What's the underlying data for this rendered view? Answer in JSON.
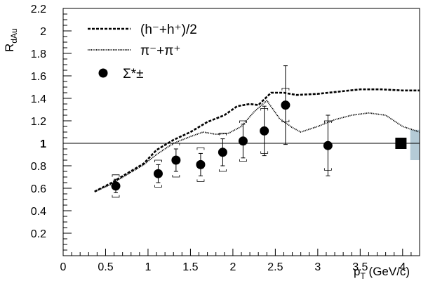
{
  "chart_data": {
    "type": "scatter",
    "xlabel_main": "p",
    "xlabel_sub": "T",
    "xlabel_unit": " (GeV/c)",
    "ylabel_main": "R",
    "ylabel_sub": "dAu",
    "xlim": [
      0,
      4.2
    ],
    "ylim": [
      0,
      2.2
    ],
    "x_ticks": [
      0,
      0.5,
      1,
      1.5,
      2,
      2.5,
      3,
      3.5,
      4
    ],
    "x_tick_labels": [
      "0",
      "0.5",
      "1",
      "1.5",
      "2",
      "2.5",
      "3",
      "3.5",
      "4"
    ],
    "y_ticks": [
      0.2,
      0.4,
      0.6,
      0.8,
      1.0,
      1.2,
      1.4,
      1.6,
      1.8,
      2.0,
      2.2
    ],
    "y_tick_labels": [
      "0.2",
      "0.4",
      "0.6",
      "0.8",
      "1",
      "1.2",
      "1.4",
      "1.6",
      "1.8",
      "2",
      "2.2"
    ],
    "grid": false,
    "reference_line_y": 1.0,
    "legend_position": "top-left",
    "legend": [
      {
        "label": "(h⁻+h⁺)/2",
        "style": "dashed"
      },
      {
        "label": "π⁻+π⁺",
        "style": "dotted"
      },
      {
        "label": "Σ*±",
        "style": "marker"
      }
    ],
    "series": [
      {
        "style": "dashed",
        "x": [
          0.37,
          0.55,
          0.75,
          0.95,
          1.1,
          1.3,
          1.5,
          1.7,
          1.9,
          2.05,
          2.2,
          2.3,
          2.45,
          2.6,
          2.75,
          3.0,
          3.25,
          3.5,
          3.75,
          4.0,
          4.2
        ],
        "y": [
          0.57,
          0.64,
          0.73,
          0.82,
          0.94,
          1.03,
          1.1,
          1.19,
          1.25,
          1.33,
          1.35,
          1.34,
          1.45,
          1.45,
          1.43,
          1.44,
          1.46,
          1.48,
          1.48,
          1.47,
          1.47
        ]
      },
      {
        "style": "dotted",
        "x": [
          0.37,
          0.55,
          0.75,
          0.95,
          1.1,
          1.3,
          1.5,
          1.65,
          1.8,
          1.95,
          2.1,
          2.25,
          2.4,
          2.55,
          2.7,
          2.8,
          3.0,
          3.2,
          3.4,
          3.6,
          3.8,
          4.0,
          4.2
        ],
        "y": [
          0.57,
          0.63,
          0.72,
          0.81,
          0.9,
          1.0,
          1.06,
          1.1,
          1.08,
          1.09,
          1.15,
          1.28,
          1.38,
          1.22,
          1.14,
          1.1,
          1.15,
          1.21,
          1.25,
          1.27,
          1.25,
          1.15,
          1.1
        ]
      }
    ],
    "points": {
      "x": [
        0.62,
        1.12,
        1.33,
        1.62,
        1.88,
        2.12,
        2.37,
        2.62,
        3.12
      ],
      "y": [
        0.62,
        0.73,
        0.85,
        0.81,
        0.92,
        1.02,
        1.11,
        1.34,
        0.98
      ],
      "stat_err": [
        0.06,
        0.08,
        0.1,
        0.1,
        0.12,
        0.15,
        0.22,
        0.35,
        0.27
      ],
      "sys_err": [
        0.1,
        0.12,
        0.15,
        0.15,
        0.17,
        0.18,
        0.2,
        0.15,
        0.22
      ]
    },
    "normalization": {
      "x": 3.98,
      "y": 1.0
    },
    "sys_band": {
      "x0": 4.09,
      "x1": 4.25,
      "y0": 0.85,
      "y1": 1.12,
      "color": "#b4cbd6"
    }
  }
}
